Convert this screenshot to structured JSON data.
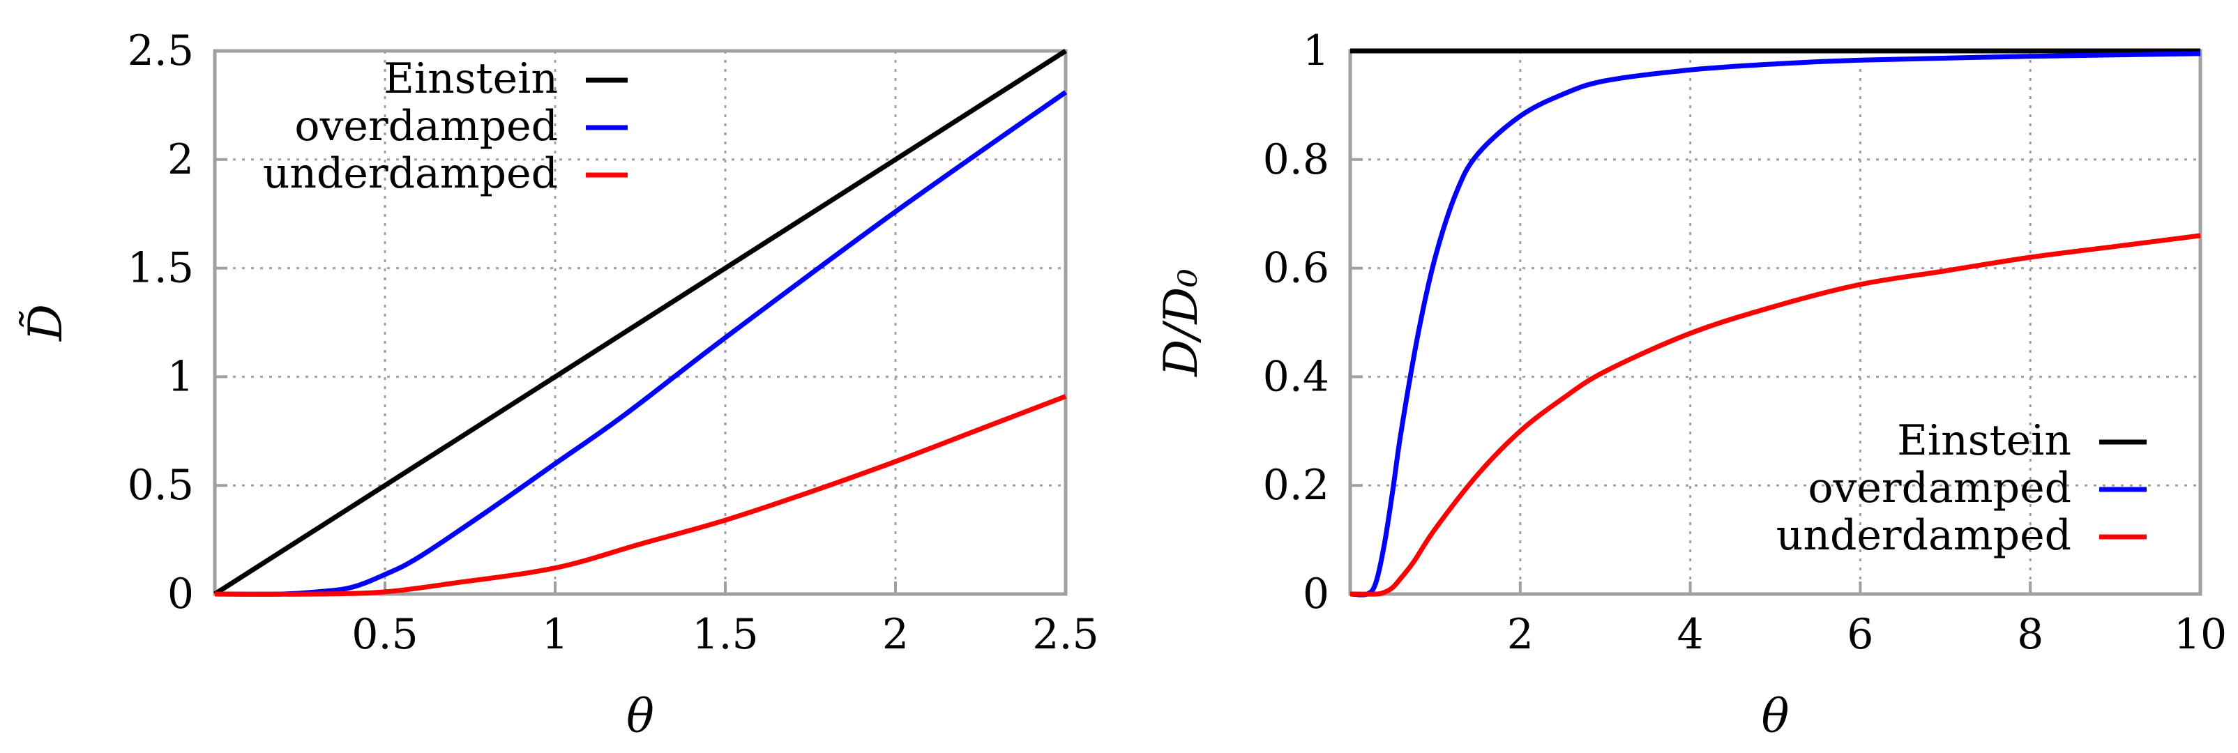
{
  "chart_data": [
    {
      "type": "line",
      "xlabel": "θ",
      "ylabel": "D̃",
      "xlim": [
        0,
        2.5
      ],
      "ylim": [
        0,
        2.5
      ],
      "xticks": [
        0.5,
        1,
        1.5,
        2,
        2.5
      ],
      "yticks": [
        0,
        0.5,
        1,
        1.5,
        2,
        2.5
      ],
      "xtick_labels": [
        "0.5",
        "1",
        "1.5",
        "2",
        "2.5"
      ],
      "ytick_labels": [
        "0",
        "0.5",
        "1",
        "1.5",
        "2",
        "2.5"
      ],
      "grid": true,
      "legend_position": "top-left",
      "series": [
        {
          "name": "Einstein",
          "color": "#000000",
          "x": [
            0,
            0.5,
            1,
            1.5,
            2,
            2.5
          ],
          "y": [
            0,
            0.5,
            1,
            1.5,
            2,
            2.5
          ]
        },
        {
          "name": "overdamped",
          "color": "#0000ff",
          "x": [
            0,
            0.2,
            0.3,
            0.4,
            0.5,
            0.6,
            0.8,
            1.0,
            1.2,
            1.5,
            2.0,
            2.5
          ],
          "y": [
            0,
            0.0,
            0.01,
            0.03,
            0.09,
            0.17,
            0.38,
            0.6,
            0.82,
            1.18,
            1.76,
            2.31
          ]
        },
        {
          "name": "underdamped",
          "color": "#ff0000",
          "x": [
            0,
            0.3,
            0.5,
            0.7,
            1.0,
            1.25,
            1.5,
            1.75,
            2.0,
            2.25,
            2.5
          ],
          "y": [
            0,
            0.0,
            0.01,
            0.05,
            0.12,
            0.23,
            0.34,
            0.47,
            0.61,
            0.76,
            0.91
          ]
        }
      ]
    },
    {
      "type": "line",
      "xlabel": "θ",
      "ylabel": "D/D₀",
      "xlim": [
        0,
        10
      ],
      "ylim": [
        0,
        1
      ],
      "xticks": [
        2,
        4,
        6,
        8,
        10
      ],
      "yticks": [
        0,
        0.2,
        0.4,
        0.6,
        0.8,
        1
      ],
      "xtick_labels": [
        "2",
        "4",
        "6",
        "8",
        "10"
      ],
      "ytick_labels": [
        "0",
        "0.2",
        "0.4",
        "0.6",
        "0.8",
        "1"
      ],
      "grid": true,
      "legend_position": "bottom-right",
      "series": [
        {
          "name": "Einstein",
          "color": "#000000",
          "x": [
            0,
            10
          ],
          "y": [
            1,
            1
          ]
        },
        {
          "name": "overdamped",
          "color": "#0000ff",
          "x": [
            0,
            0.2,
            0.3,
            0.4,
            0.5,
            0.6,
            0.8,
            1.0,
            1.25,
            1.5,
            2.0,
            2.5,
            3.0,
            4.0,
            5.0,
            6.0,
            8.0,
            10.0
          ],
          "y": [
            0,
            0.0,
            0.02,
            0.09,
            0.19,
            0.3,
            0.48,
            0.62,
            0.74,
            0.81,
            0.88,
            0.92,
            0.945,
            0.965,
            0.976,
            0.983,
            0.99,
            0.995
          ]
        },
        {
          "name": "underdamped",
          "color": "#ff0000",
          "x": [
            0,
            0.3,
            0.4,
            0.5,
            0.6,
            0.75,
            1.0,
            1.5,
            2.0,
            2.5,
            3.0,
            4.0,
            5.0,
            6.0,
            7.0,
            8.0,
            9.0,
            10.0
          ],
          "y": [
            0,
            0.0,
            0.003,
            0.012,
            0.03,
            0.06,
            0.12,
            0.22,
            0.3,
            0.36,
            0.41,
            0.48,
            0.53,
            0.57,
            0.595,
            0.62,
            0.64,
            0.66
          ]
        }
      ]
    }
  ]
}
